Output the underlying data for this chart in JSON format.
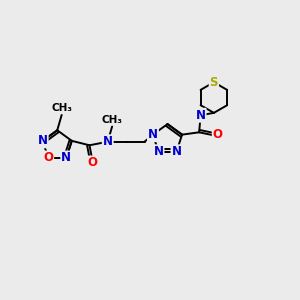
{
  "bg_color": "#ebebeb",
  "atom_colors": {
    "C": "#000000",
    "N": "#0000cc",
    "O": "#ff0000",
    "S": "#aaaa00",
    "H": "#000000"
  },
  "bond_color": "#000000",
  "lw": 1.4,
  "fs": 9.0
}
